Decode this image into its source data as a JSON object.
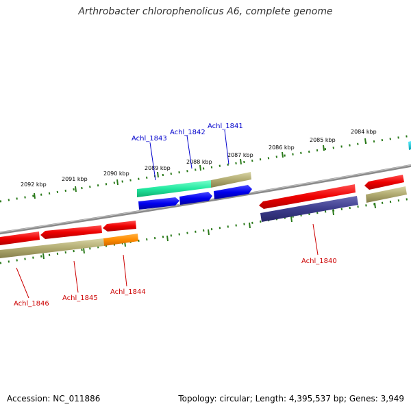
{
  "title": "Arthrobacter chlorophenolicus A6, complete genome",
  "footer": {
    "accession": "Accession: NC_011886",
    "summary": "Topology: circular; Length: 4,395,537 bp; Genes: 3,949"
  },
  "colors": {
    "backbone": "#888888",
    "tick": "#2a7a1a",
    "label_top": "#0000cc",
    "label_bottom": "#cc0000",
    "red": "#ee0000",
    "blue": "#0000ee",
    "green": "#22e8a0",
    "olive": "#b0aa70",
    "orange": "#ff8c00",
    "navy": "#3c3c8c",
    "cyan": "#00c8d8"
  },
  "kbp_labels": [
    "2092 kbp",
    "2091 kbp",
    "2090 kbp",
    "2089 kbp",
    "2088 kbp",
    "2087 kbp",
    "2086 kbp",
    "2085 kbp",
    "2084 kbp"
  ],
  "gene_labels": {
    "achl_1841": "Achl_1841",
    "achl_1842": "Achl_1842",
    "achl_1843": "Achl_1843",
    "achl_1840": "Achl_1840",
    "achl_1844": "Achl_1844",
    "achl_1845": "Achl_1845",
    "achl_1846": "Achl_1846"
  }
}
